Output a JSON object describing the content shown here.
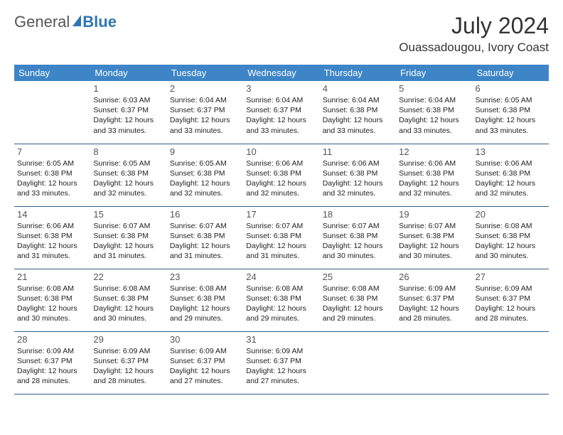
{
  "logo": {
    "general": "General",
    "blue": "Blue"
  },
  "title": "July 2024",
  "location": "Ouassadougou, Ivory Coast",
  "colors": {
    "header_bg": "#3d85c6",
    "header_text": "#ffffff",
    "row_border": "#305d8a",
    "brand_blue": "#2e75b6",
    "brand_gray": "#555555"
  },
  "weekdays": [
    "Sunday",
    "Monday",
    "Tuesday",
    "Wednesday",
    "Thursday",
    "Friday",
    "Saturday"
  ],
  "weeks": [
    [
      {
        "day": "",
        "lines": []
      },
      {
        "day": "1",
        "lines": [
          "Sunrise: 6:03 AM",
          "Sunset: 6:37 PM",
          "Daylight: 12 hours and 33 minutes."
        ]
      },
      {
        "day": "2",
        "lines": [
          "Sunrise: 6:04 AM",
          "Sunset: 6:37 PM",
          "Daylight: 12 hours and 33 minutes."
        ]
      },
      {
        "day": "3",
        "lines": [
          "Sunrise: 6:04 AM",
          "Sunset: 6:37 PM",
          "Daylight: 12 hours and 33 minutes."
        ]
      },
      {
        "day": "4",
        "lines": [
          "Sunrise: 6:04 AM",
          "Sunset: 6:38 PM",
          "Daylight: 12 hours and 33 minutes."
        ]
      },
      {
        "day": "5",
        "lines": [
          "Sunrise: 6:04 AM",
          "Sunset: 6:38 PM",
          "Daylight: 12 hours and 33 minutes."
        ]
      },
      {
        "day": "6",
        "lines": [
          "Sunrise: 6:05 AM",
          "Sunset: 6:38 PM",
          "Daylight: 12 hours and 33 minutes."
        ]
      }
    ],
    [
      {
        "day": "7",
        "lines": [
          "Sunrise: 6:05 AM",
          "Sunset: 6:38 PM",
          "Daylight: 12 hours and 33 minutes."
        ]
      },
      {
        "day": "8",
        "lines": [
          "Sunrise: 6:05 AM",
          "Sunset: 6:38 PM",
          "Daylight: 12 hours and 32 minutes."
        ]
      },
      {
        "day": "9",
        "lines": [
          "Sunrise: 6:05 AM",
          "Sunset: 6:38 PM",
          "Daylight: 12 hours and 32 minutes."
        ]
      },
      {
        "day": "10",
        "lines": [
          "Sunrise: 6:06 AM",
          "Sunset: 6:38 PM",
          "Daylight: 12 hours and 32 minutes."
        ]
      },
      {
        "day": "11",
        "lines": [
          "Sunrise: 6:06 AM",
          "Sunset: 6:38 PM",
          "Daylight: 12 hours and 32 minutes."
        ]
      },
      {
        "day": "12",
        "lines": [
          "Sunrise: 6:06 AM",
          "Sunset: 6:38 PM",
          "Daylight: 12 hours and 32 minutes."
        ]
      },
      {
        "day": "13",
        "lines": [
          "Sunrise: 6:06 AM",
          "Sunset: 6:38 PM",
          "Daylight: 12 hours and 32 minutes."
        ]
      }
    ],
    [
      {
        "day": "14",
        "lines": [
          "Sunrise: 6:06 AM",
          "Sunset: 6:38 PM",
          "Daylight: 12 hours and 31 minutes."
        ]
      },
      {
        "day": "15",
        "lines": [
          "Sunrise: 6:07 AM",
          "Sunset: 6:38 PM",
          "Daylight: 12 hours and 31 minutes."
        ]
      },
      {
        "day": "16",
        "lines": [
          "Sunrise: 6:07 AM",
          "Sunset: 6:38 PM",
          "Daylight: 12 hours and 31 minutes."
        ]
      },
      {
        "day": "17",
        "lines": [
          "Sunrise: 6:07 AM",
          "Sunset: 6:38 PM",
          "Daylight: 12 hours and 31 minutes."
        ]
      },
      {
        "day": "18",
        "lines": [
          "Sunrise: 6:07 AM",
          "Sunset: 6:38 PM",
          "Daylight: 12 hours and 30 minutes."
        ]
      },
      {
        "day": "19",
        "lines": [
          "Sunrise: 6:07 AM",
          "Sunset: 6:38 PM",
          "Daylight: 12 hours and 30 minutes."
        ]
      },
      {
        "day": "20",
        "lines": [
          "Sunrise: 6:08 AM",
          "Sunset: 6:38 PM",
          "Daylight: 12 hours and 30 minutes."
        ]
      }
    ],
    [
      {
        "day": "21",
        "lines": [
          "Sunrise: 6:08 AM",
          "Sunset: 6:38 PM",
          "Daylight: 12 hours and 30 minutes."
        ]
      },
      {
        "day": "22",
        "lines": [
          "Sunrise: 6:08 AM",
          "Sunset: 6:38 PM",
          "Daylight: 12 hours and 30 minutes."
        ]
      },
      {
        "day": "23",
        "lines": [
          "Sunrise: 6:08 AM",
          "Sunset: 6:38 PM",
          "Daylight: 12 hours and 29 minutes."
        ]
      },
      {
        "day": "24",
        "lines": [
          "Sunrise: 6:08 AM",
          "Sunset: 6:38 PM",
          "Daylight: 12 hours and 29 minutes."
        ]
      },
      {
        "day": "25",
        "lines": [
          "Sunrise: 6:08 AM",
          "Sunset: 6:38 PM",
          "Daylight: 12 hours and 29 minutes."
        ]
      },
      {
        "day": "26",
        "lines": [
          "Sunrise: 6:09 AM",
          "Sunset: 6:37 PM",
          "Daylight: 12 hours and 28 minutes."
        ]
      },
      {
        "day": "27",
        "lines": [
          "Sunrise: 6:09 AM",
          "Sunset: 6:37 PM",
          "Daylight: 12 hours and 28 minutes."
        ]
      }
    ],
    [
      {
        "day": "28",
        "lines": [
          "Sunrise: 6:09 AM",
          "Sunset: 6:37 PM",
          "Daylight: 12 hours and 28 minutes."
        ]
      },
      {
        "day": "29",
        "lines": [
          "Sunrise: 6:09 AM",
          "Sunset: 6:37 PM",
          "Daylight: 12 hours and 28 minutes."
        ]
      },
      {
        "day": "30",
        "lines": [
          "Sunrise: 6:09 AM",
          "Sunset: 6:37 PM",
          "Daylight: 12 hours and 27 minutes."
        ]
      },
      {
        "day": "31",
        "lines": [
          "Sunrise: 6:09 AM",
          "Sunset: 6:37 PM",
          "Daylight: 12 hours and 27 minutes."
        ]
      },
      {
        "day": "",
        "lines": []
      },
      {
        "day": "",
        "lines": []
      },
      {
        "day": "",
        "lines": []
      }
    ]
  ]
}
